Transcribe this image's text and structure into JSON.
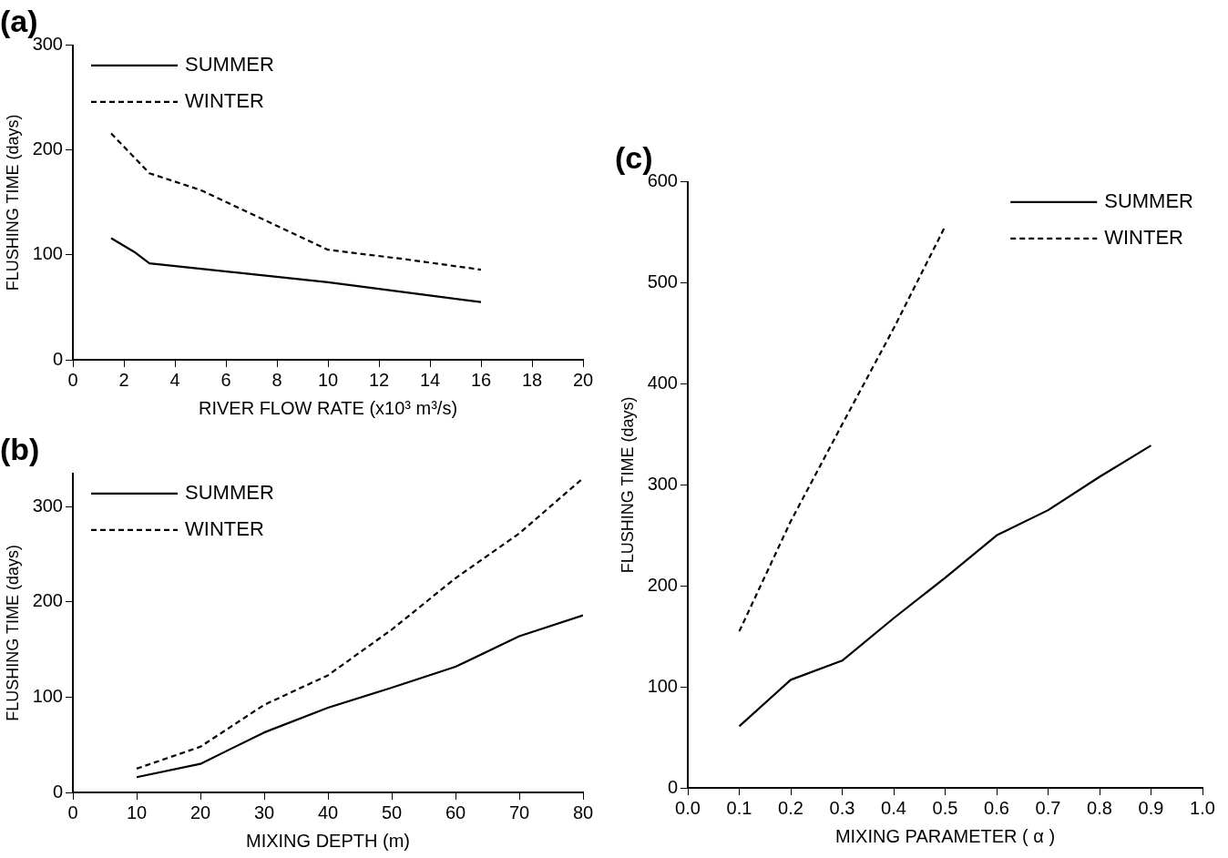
{
  "chart_data": [
    {
      "type": "line",
      "title": "(a)",
      "xlabel": "RIVER FLOW RATE (x10³ m³/s)",
      "ylabel": "FLUSHING TIME (days)",
      "xlim": [
        0,
        20
      ],
      "xticks": [
        0,
        2,
        4,
        6,
        8,
        10,
        12,
        14,
        16,
        18,
        20
      ],
      "ylim": [
        0,
        300
      ],
      "yticks": [
        0,
        100,
        200,
        300
      ],
      "grid": false,
      "legend": "top left",
      "marker": "none",
      "series": [
        {
          "name": "SUMMER",
          "color": "#000000",
          "line_style": "solid",
          "x": [
            1.5,
            2.4,
            3,
            10,
            16
          ],
          "values": [
            116,
            103,
            92,
            74,
            55
          ]
        },
        {
          "name": "WINTER",
          "color": "#000000",
          "line_style": "dashed",
          "x": [
            1.5,
            3,
            5,
            10,
            13,
            16
          ],
          "values": [
            216,
            178,
            162,
            105,
            96,
            86
          ]
        }
      ]
    },
    {
      "type": "line",
      "title": "(b)",
      "xlabel": "MIXING DEPTH (m)",
      "ylabel": "FLUSHING TIME (days)",
      "xlim": [
        0,
        80
      ],
      "xticks": [
        0,
        10,
        20,
        30,
        40,
        50,
        60,
        70,
        80
      ],
      "ylim": [
        0,
        335
      ],
      "yticks": [
        0,
        100,
        200,
        300
      ],
      "grid": false,
      "legend": "top left",
      "marker": "none",
      "series": [
        {
          "name": "SUMMER",
          "color": "#000000",
          "line_style": "solid",
          "x": [
            10,
            20,
            30,
            40,
            50,
            60,
            70,
            80
          ],
          "values": [
            16,
            30,
            63,
            89,
            110,
            132,
            164,
            186
          ]
        },
        {
          "name": "WINTER",
          "color": "#000000",
          "line_style": "dashed",
          "x": [
            10,
            20,
            30,
            40,
            50,
            60,
            70,
            80
          ],
          "values": [
            25,
            48,
            92,
            123,
            171,
            225,
            272,
            330
          ]
        }
      ]
    },
    {
      "type": "line",
      "title": "(c)",
      "xlabel": "MIXING PARAMETER ( α )",
      "ylabel": "FLUSHING TIME (days)",
      "xlim": [
        0,
        1
      ],
      "xticks": [
        {
          "value": 0,
          "label": "0.0"
        },
        0.1,
        0.2,
        0.3,
        0.4,
        0.5,
        0.6,
        0.7,
        0.8,
        0.9,
        {
          "value": 1,
          "label": "1.0"
        }
      ],
      "ylim": [
        0,
        600
      ],
      "yticks": [
        0,
        100,
        200,
        300,
        400,
        500,
        600
      ],
      "grid": false,
      "legend": "top right",
      "marker": "none",
      "series": [
        {
          "name": "SUMMER",
          "color": "#000000",
          "line_style": "solid",
          "x": [
            0.1,
            0.2,
            0.3,
            0.4,
            0.5,
            0.6,
            0.7,
            0.8,
            0.9
          ],
          "values": [
            61,
            107,
            126,
            168,
            208,
            250,
            275,
            308,
            339
          ]
        },
        {
          "name": "WINTER",
          "color": "#000000",
          "line_style": "dashed",
          "x": [
            0.1,
            0.2,
            0.3,
            0.4,
            0.5
          ],
          "values": [
            155,
            264,
            360,
            455,
            556
          ]
        }
      ]
    }
  ]
}
